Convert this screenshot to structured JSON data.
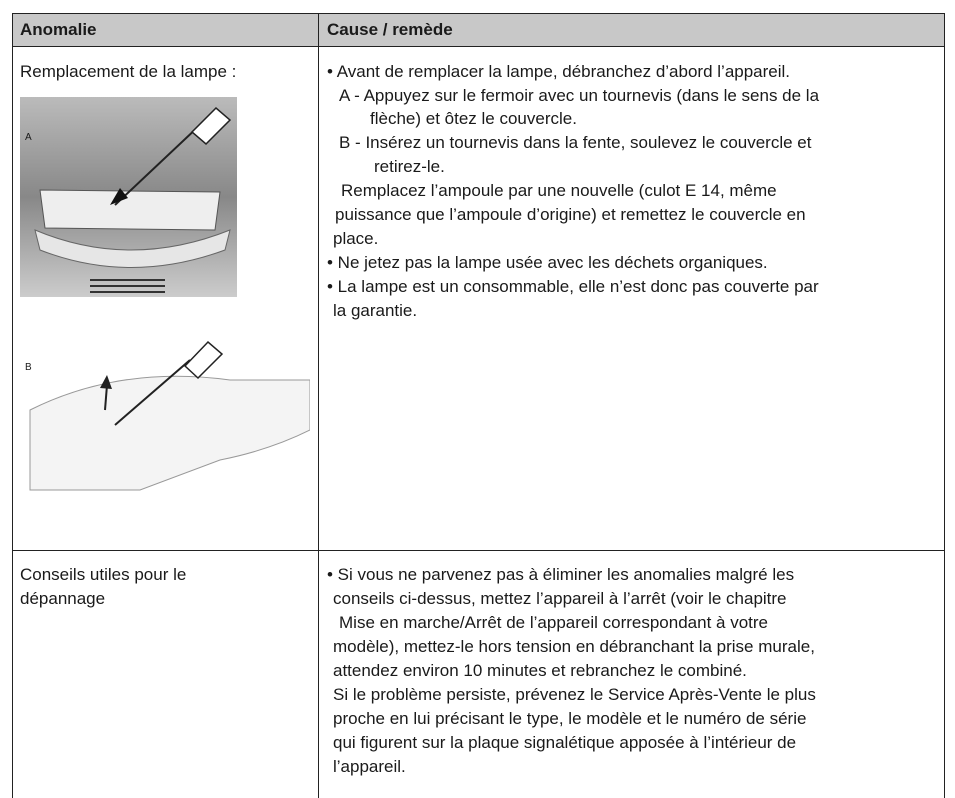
{
  "table": {
    "header": [
      "Anomalie",
      "Cause / remède"
    ],
    "rows": [
      {
        "anomaly": [
          "Remplacement de la lampe :"
        ],
        "figures": [
          "A",
          "B"
        ],
        "cause": [
          "• Avant de remplacer la lampe, débranchez d’abord l’appareil.",
          "A - Appuyez sur le fermoir avec un tournevis (dans le sens de la",
          "flèche) et ôtez le couvercle.",
          "B - Insérez un tournevis dans la fente, soulevez le couvercle et",
          "retirez-le.",
          "Remplacez l’ampoule par une nouvelle (culot E 14, même",
          "puissance que l’ampoule d’origine) et remettez le couvercle en",
          "place.",
          "• Ne jetez pas la lampe usée avec les déchets organiques.",
          "• La lampe est un consommable, elle n’est donc pas couverte par",
          "la garantie."
        ]
      },
      {
        "anomaly": [
          "Conseils utiles pour le",
          "dépannage"
        ],
        "cause": [
          "• Si vous ne parvenez pas à éliminer les anomalies malgré les",
          "conseils ci-dessus, mettez l’appareil à l’arrêt (voir le chapitre",
          "Mise en marche/Arrêt de l’appareil correspondant à votre",
          "modèle), mettez-le hors tension en débranchant la prise murale,",
          "attendez environ 10 minutes et rebranchez le combiné.",
          "Si le problème persiste, prévenez le Service Après-Vente le plus",
          "proche en lui précisant le type, le modèle et le numéro de série",
          "qui figurent sur la plaque signalétique apposée à l’intérieur de",
          "l’appareil."
        ]
      }
    ]
  }
}
